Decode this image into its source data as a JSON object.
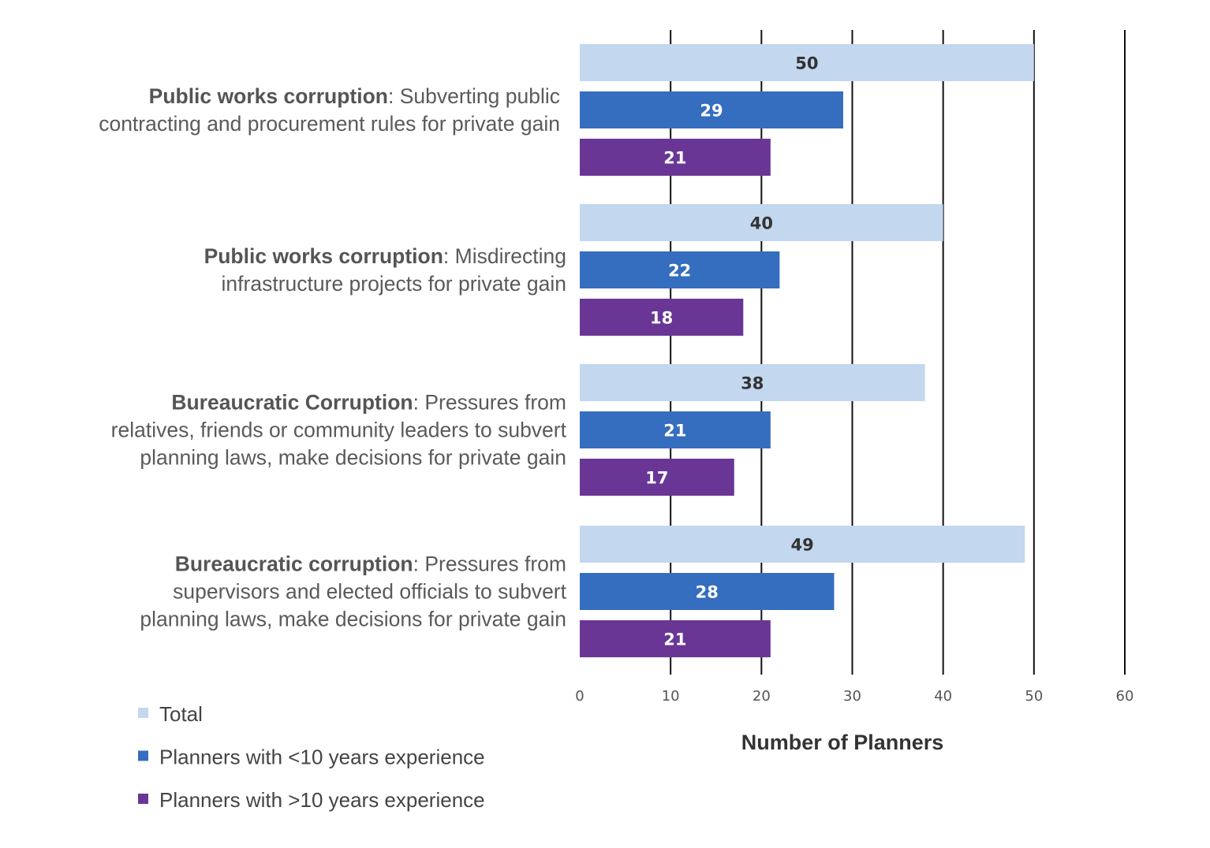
{
  "chart_data": {
    "type": "bar",
    "orientation": "horizontal",
    "title": "",
    "xlabel": "Number of Planners",
    "ylabel": "",
    "xlim": [
      0,
      60
    ],
    "xticks": [
      "0",
      "10",
      "20",
      "30",
      "40",
      "50",
      "60"
    ],
    "grid": true,
    "legend_placement": "bottom-left",
    "categories": [
      {
        "bold": "Public works corruption",
        "rest": ": Subverting public",
        "lines": [
          "contracting and procurement rules for private gain"
        ]
      },
      {
        "bold": "Public works corruption",
        "rest": ": Misdirecting",
        "lines": [
          "infrastructure projects for private gain"
        ]
      },
      {
        "bold": "Bureaucratic Corruption",
        "rest": ": Pressures from",
        "lines": [
          "relatives, friends or community leaders to subvert",
          "planning laws, make decisions for private gain"
        ]
      },
      {
        "bold": "Bureaucratic corruption",
        "rest": ": Pressures from",
        "lines": [
          "supervisors and elected officials to subvert",
          "planning laws, make decisions for private gain"
        ]
      }
    ],
    "series": [
      {
        "name": "Total",
        "color": "#c3d7ef",
        "label_color": "#333333",
        "values": [
          50,
          40,
          38,
          49
        ]
      },
      {
        "name": "Planners with <10 years experience",
        "color": "#356dbf",
        "label_color": "#ffffff",
        "values": [
          29,
          22,
          21,
          28
        ]
      },
      {
        "name": "Planners with >10 years experience",
        "color": "#6a3696",
        "label_color": "#ffffff",
        "values": [
          21,
          18,
          17,
          21
        ]
      }
    ]
  }
}
